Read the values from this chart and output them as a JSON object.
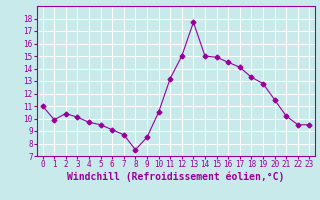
{
  "x": [
    0,
    1,
    2,
    3,
    4,
    5,
    6,
    7,
    8,
    9,
    10,
    11,
    12,
    13,
    14,
    15,
    16,
    17,
    18,
    19,
    20,
    21,
    22,
    23
  ],
  "y": [
    11.0,
    9.9,
    10.4,
    10.1,
    9.7,
    9.5,
    9.1,
    8.7,
    7.5,
    8.5,
    10.5,
    13.2,
    15.0,
    17.7,
    15.0,
    14.9,
    14.5,
    14.1,
    13.3,
    12.8,
    11.5,
    10.2,
    9.5,
    9.5
  ],
  "line_color": "#990099",
  "marker": "D",
  "markersize": 2.5,
  "bg_color": "#c8eaea",
  "grid_color": "#ffffff",
  "xlabel": "Windchill (Refroidissement éolien,°C)",
  "xlabel_color": "#990099",
  "ylim": [
    7,
    19
  ],
  "yticks": [
    7,
    8,
    9,
    10,
    11,
    12,
    13,
    14,
    15,
    16,
    17,
    18
  ],
  "xticks": [
    0,
    1,
    2,
    3,
    4,
    5,
    6,
    7,
    8,
    9,
    10,
    11,
    12,
    13,
    14,
    15,
    16,
    17,
    18,
    19,
    20,
    21,
    22,
    23
  ],
  "xtick_labels": [
    "0",
    "1",
    "2",
    "3",
    "4",
    "5",
    "6",
    "7",
    "8",
    "9",
    "10",
    "11",
    "12",
    "13",
    "14",
    "15",
    "16",
    "17",
    "18",
    "19",
    "20",
    "21",
    "22",
    "23"
  ],
  "tick_color": "#990099",
  "tick_fontsize": 5.5,
  "xlabel_fontsize": 7,
  "spine_color": "#990099",
  "linewidth": 0.8
}
